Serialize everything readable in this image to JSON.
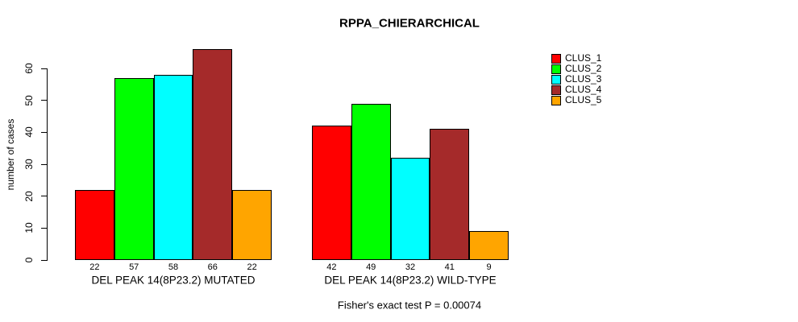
{
  "title": "RPPA_CHIERARCHICAL",
  "chart_data": {
    "type": "bar",
    "title": "RPPA_CHIERARCHICAL",
    "xlabel": "",
    "ylabel": "number of cases",
    "ylim": [
      0,
      66
    ],
    "yticks": [
      0,
      10,
      20,
      30,
      40,
      50,
      60
    ],
    "grid": false,
    "legend_position": "right",
    "categories": [
      "DEL PEAK 14(8P23.2) MUTATED",
      "DEL PEAK 14(8P23.2) WILD-TYPE"
    ],
    "series": [
      {
        "name": "CLUS_1",
        "color": "#FF0000",
        "values": [
          22,
          42
        ]
      },
      {
        "name": "CLUS_2",
        "color": "#00FF00",
        "values": [
          57,
          49
        ]
      },
      {
        "name": "CLUS_3",
        "color": "#00FFFF",
        "values": [
          58,
          32
        ]
      },
      {
        "name": "CLUS_4",
        "color": "#A52A2A",
        "values": [
          66,
          41
        ]
      },
      {
        "name": "CLUS_5",
        "color": "#FFA500",
        "values": [
          22,
          9
        ]
      }
    ],
    "bar_value_labels": [
      [
        22,
        57,
        58,
        66,
        22
      ],
      [
        42,
        49,
        32,
        41,
        9
      ]
    ],
    "annotation": "Fisher's exact test P = 0.00074",
    "background_color": "#FFFFFF",
    "axis_color": "#000000"
  }
}
